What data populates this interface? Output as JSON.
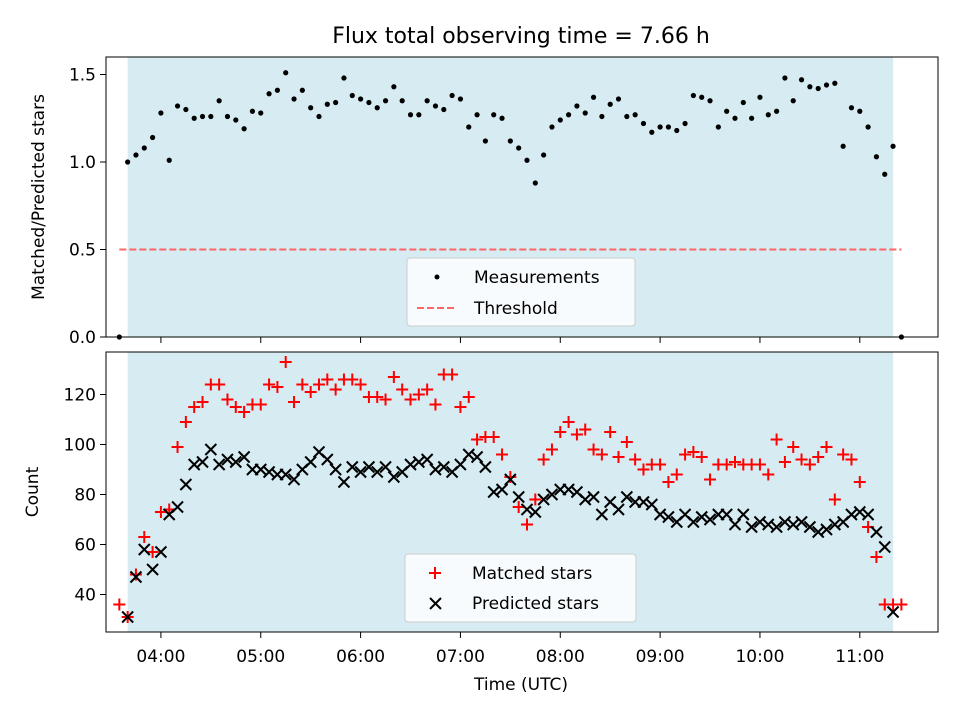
{
  "figure": {
    "title": "Flux total observing time = 7.66 h",
    "xlabel": "Time (UTC)"
  },
  "colors": {
    "observing_band": "#add8e6",
    "measurements": "#000000",
    "threshold": "#ff6666",
    "matched": "#ff0000",
    "predicted": "#000000"
  },
  "chart_data": [
    {
      "type": "scatter",
      "ylabel": "Matched/Predicted stars",
      "xlim": [
        "03:27",
        "11:47"
      ],
      "ylim": [
        0,
        1.6
      ],
      "yticks": [
        0.0,
        0.5,
        1.0,
        1.5
      ],
      "ytick_labels": [
        "0.0",
        "0.5",
        "1.0",
        "1.5"
      ],
      "observing_window": [
        "03:40",
        "11:20"
      ],
      "legend_position": "lower center",
      "series": [
        {
          "name": "Measurements",
          "marker": "dot",
          "color": "#000000",
          "x": [
            "03:35",
            "03:40",
            "03:45",
            "03:50",
            "03:55",
            "04:00",
            "04:05",
            "04:10",
            "04:15",
            "04:20",
            "04:25",
            "04:30",
            "04:35",
            "04:40",
            "04:45",
            "04:50",
            "04:55",
            "05:00",
            "05:05",
            "05:10",
            "05:15",
            "05:20",
            "05:25",
            "05:30",
            "05:35",
            "05:40",
            "05:45",
            "05:50",
            "05:55",
            "06:00",
            "06:05",
            "06:10",
            "06:15",
            "06:20",
            "06:25",
            "06:30",
            "06:35",
            "06:40",
            "06:45",
            "06:50",
            "06:55",
            "07:00",
            "07:05",
            "07:10",
            "07:15",
            "07:20",
            "07:25",
            "07:30",
            "07:35",
            "07:40",
            "07:45",
            "07:50",
            "07:55",
            "08:00",
            "08:05",
            "08:10",
            "08:15",
            "08:20",
            "08:25",
            "08:30",
            "08:35",
            "08:40",
            "08:45",
            "08:50",
            "08:55",
            "09:00",
            "09:05",
            "09:10",
            "09:15",
            "09:20",
            "09:25",
            "09:30",
            "09:35",
            "09:40",
            "09:45",
            "09:50",
            "09:55",
            "10:00",
            "10:05",
            "10:10",
            "10:15",
            "10:20",
            "10:25",
            "10:30",
            "10:35",
            "10:40",
            "10:45",
            "10:50",
            "10:55",
            "11:00",
            "11:05",
            "11:10",
            "11:15",
            "11:20",
            "11:25"
          ],
          "y": [
            0.0,
            1.0,
            1.04,
            1.08,
            1.14,
            1.28,
            1.01,
            1.32,
            1.3,
            1.25,
            1.26,
            1.26,
            1.35,
            1.26,
            1.24,
            1.19,
            1.29,
            1.28,
            1.39,
            1.41,
            1.51,
            1.36,
            1.41,
            1.31,
            1.26,
            1.33,
            1.34,
            1.48,
            1.38,
            1.36,
            1.34,
            1.31,
            1.35,
            1.43,
            1.35,
            1.27,
            1.27,
            1.35,
            1.32,
            1.3,
            1.38,
            1.36,
            1.2,
            1.27,
            1.12,
            1.27,
            1.25,
            1.12,
            1.08,
            1.01,
            0.88,
            1.04,
            1.2,
            1.24,
            1.27,
            1.32,
            1.28,
            1.37,
            1.26,
            1.33,
            1.36,
            1.26,
            1.27,
            1.22,
            1.17,
            1.2,
            1.2,
            1.18,
            1.22,
            1.38,
            1.37,
            1.35,
            1.2,
            1.29,
            1.25,
            1.34,
            1.25,
            1.37,
            1.27,
            1.29,
            1.48,
            1.35,
            1.47,
            1.43,
            1.42,
            1.44,
            1.45,
            1.09,
            1.31,
            1.29,
            1.2,
            1.03,
            0.93,
            1.09,
            0.0
          ]
        },
        {
          "name": "Threshold",
          "style": "dashed",
          "color": "#ff6666",
          "x": [
            "03:35",
            "11:25"
          ],
          "y": [
            0.5,
            0.5
          ]
        }
      ]
    },
    {
      "type": "scatter",
      "ylabel": "Count",
      "xlim": [
        "03:27",
        "11:47"
      ],
      "ylim": [
        25,
        137
      ],
      "yticks": [
        40,
        60,
        80,
        100,
        120
      ],
      "ytick_labels": [
        "40",
        "60",
        "80",
        "100",
        "120"
      ],
      "xtick_labels": [
        "04:00",
        "05:00",
        "06:00",
        "07:00",
        "08:00",
        "09:00",
        "10:00",
        "11:00"
      ],
      "observing_window": [
        "03:40",
        "11:20"
      ],
      "legend_position": "lower center",
      "series": [
        {
          "name": "Matched stars",
          "marker": "plus",
          "color": "#ff0000",
          "x": [
            "03:35",
            "03:40",
            "03:45",
            "03:50",
            "03:55",
            "04:00",
            "04:05",
            "04:10",
            "04:15",
            "04:20",
            "04:25",
            "04:30",
            "04:35",
            "04:40",
            "04:45",
            "04:50",
            "04:55",
            "05:00",
            "05:05",
            "05:10",
            "05:15",
            "05:20",
            "05:25",
            "05:30",
            "05:35",
            "05:40",
            "05:45",
            "05:50",
            "05:55",
            "06:00",
            "06:05",
            "06:10",
            "06:15",
            "06:20",
            "06:25",
            "06:30",
            "06:35",
            "06:40",
            "06:45",
            "06:50",
            "06:55",
            "07:00",
            "07:05",
            "07:10",
            "07:15",
            "07:20",
            "07:25",
            "07:30",
            "07:35",
            "07:40",
            "07:45",
            "07:50",
            "07:55",
            "08:00",
            "08:05",
            "08:10",
            "08:15",
            "08:20",
            "08:25",
            "08:30",
            "08:35",
            "08:40",
            "08:45",
            "08:50",
            "08:55",
            "09:00",
            "09:05",
            "09:10",
            "09:15",
            "09:20",
            "09:25",
            "09:30",
            "09:35",
            "09:40",
            "09:45",
            "09:50",
            "09:55",
            "10:00",
            "10:05",
            "10:10",
            "10:15",
            "10:20",
            "10:25",
            "10:30",
            "10:35",
            "10:40",
            "10:45",
            "10:50",
            "10:55",
            "11:00",
            "11:05",
            "11:10",
            "11:15",
            "11:20",
            "11:25"
          ],
          "y": [
            36,
            31,
            48,
            63,
            57,
            73,
            74,
            99,
            109,
            115,
            117,
            124,
            124,
            118,
            115,
            113,
            116,
            116,
            124,
            123,
            133,
            117,
            124,
            121,
            124,
            126,
            122,
            126,
            126,
            124,
            119,
            119,
            118,
            127,
            122,
            118,
            120,
            122,
            116,
            128,
            128,
            115,
            119,
            102,
            103,
            103,
            96,
            87,
            75,
            68,
            78,
            94,
            98,
            105,
            109,
            104,
            106,
            98,
            96,
            105,
            95,
            101,
            94,
            90,
            92,
            92,
            85,
            88,
            96,
            97,
            95,
            86,
            92,
            92,
            93,
            92,
            92,
            92,
            88,
            102,
            93,
            99,
            94,
            92,
            95,
            99,
            78,
            96,
            94,
            85,
            67,
            55,
            36,
            36,
            36
          ]
        },
        {
          "name": "Predicted stars",
          "marker": "x",
          "color": "#000000",
          "x": [
            "03:40",
            "03:45",
            "03:50",
            "03:55",
            "04:00",
            "04:05",
            "04:10",
            "04:15",
            "04:20",
            "04:25",
            "04:30",
            "04:35",
            "04:40",
            "04:45",
            "04:50",
            "04:55",
            "05:00",
            "05:05",
            "05:10",
            "05:15",
            "05:20",
            "05:25",
            "05:30",
            "05:35",
            "05:40",
            "05:45",
            "05:50",
            "05:55",
            "06:00",
            "06:05",
            "06:10",
            "06:15",
            "06:20",
            "06:25",
            "06:30",
            "06:35",
            "06:40",
            "06:45",
            "06:50",
            "06:55",
            "07:00",
            "07:05",
            "07:10",
            "07:15",
            "07:20",
            "07:25",
            "07:30",
            "07:35",
            "07:40",
            "07:45",
            "07:50",
            "07:55",
            "08:00",
            "08:05",
            "08:10",
            "08:15",
            "08:20",
            "08:25",
            "08:30",
            "08:35",
            "08:40",
            "08:45",
            "08:50",
            "08:55",
            "09:00",
            "09:05",
            "09:10",
            "09:15",
            "09:20",
            "09:25",
            "09:30",
            "09:35",
            "09:40",
            "09:45",
            "09:50",
            "09:55",
            "10:00",
            "10:05",
            "10:10",
            "10:15",
            "10:20",
            "10:25",
            "10:30",
            "10:35",
            "10:40",
            "10:45",
            "10:50",
            "10:55",
            "11:00",
            "11:05",
            "11:10",
            "11:15",
            "11:20"
          ],
          "y": [
            31,
            47,
            58,
            50,
            57,
            72,
            75,
            84,
            92,
            93,
            98,
            92,
            94,
            93,
            95,
            90,
            90,
            89,
            88,
            88,
            86,
            90,
            93,
            97,
            94,
            90,
            85,
            91,
            89,
            91,
            89,
            91,
            87,
            89,
            92,
            93,
            94,
            90,
            91,
            89,
            92,
            96,
            95,
            91,
            81,
            82,
            86,
            79,
            74,
            73,
            78,
            80,
            82,
            82,
            81,
            78,
            79,
            72,
            77,
            74,
            79,
            77,
            77,
            76,
            72,
            71,
            69,
            72,
            69,
            71,
            70,
            72,
            72,
            68,
            72,
            67,
            69,
            68,
            67,
            69,
            68,
            69,
            67,
            65,
            66,
            68,
            69,
            72,
            73,
            72,
            65,
            59,
            33
          ]
        }
      ]
    }
  ]
}
